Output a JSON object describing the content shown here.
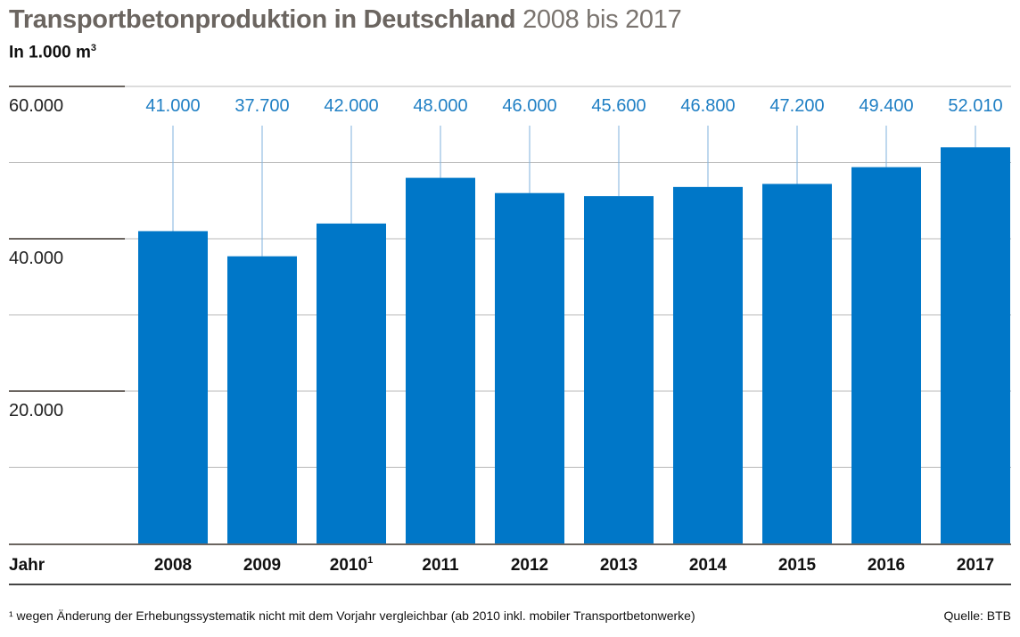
{
  "header": {
    "title_bold": "Transportbetonproduktion in Deutschland",
    "title_light": "2008 bis 2017",
    "subtitle": "In 1.000 m",
    "subtitle_sup": "3"
  },
  "chart_data": {
    "type": "bar",
    "categories": [
      "2008",
      "2009",
      "2010",
      "2011",
      "2012",
      "2013",
      "2014",
      "2015",
      "2016",
      "2017"
    ],
    "category_footnotes": [
      "",
      "",
      "1",
      "",
      "",
      "",
      "",
      "",
      "",
      ""
    ],
    "values": [
      41000,
      37700,
      42000,
      48000,
      46000,
      45600,
      46800,
      47200,
      49400,
      52010
    ],
    "value_labels": [
      "41.000",
      "37.700",
      "42.000",
      "48.000",
      "46.000",
      "45.600",
      "46.800",
      "47.200",
      "49.400",
      "52.010"
    ],
    "ylim": [
      0,
      60000
    ],
    "yticks": [
      20000,
      40000,
      60000
    ],
    "ytick_labels": [
      "20.000",
      "40.000",
      "60.000"
    ],
    "xlabel": "Jahr",
    "grid": true,
    "colors": {
      "bar": "#0077c8",
      "label": "#1f7fc4",
      "grid": "#b8b8b8",
      "axis": "#6b6560"
    }
  },
  "footer": {
    "footnote": "¹ wegen Änderung der Erhebungssystematik nicht mit dem Vorjahr vergleichbar (ab 2010 inkl. mobiler Transportbetonwerke)",
    "source": "Quelle: BTB"
  }
}
